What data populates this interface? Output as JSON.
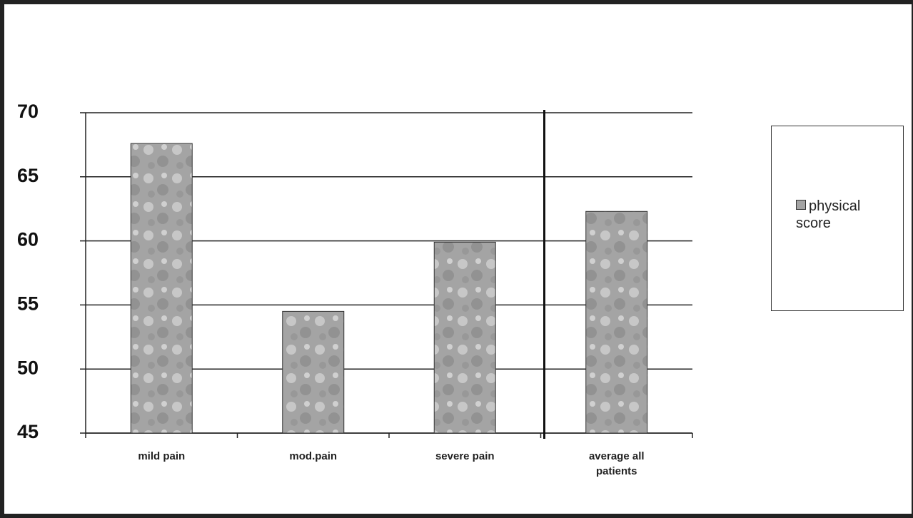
{
  "chart_data": {
    "type": "bar",
    "categories": [
      "mild pain",
      "mod.pain",
      "severe pain",
      "average all patients"
    ],
    "series": [
      {
        "name": "physical score",
        "color": "#a4a4a4",
        "values": [
          67.6,
          54.5,
          59.9,
          62.3
        ]
      }
    ],
    "ylim": [
      45,
      70
    ],
    "yticks": [
      45,
      50,
      55,
      60,
      65,
      70
    ],
    "grid": true,
    "legend": "right"
  }
}
